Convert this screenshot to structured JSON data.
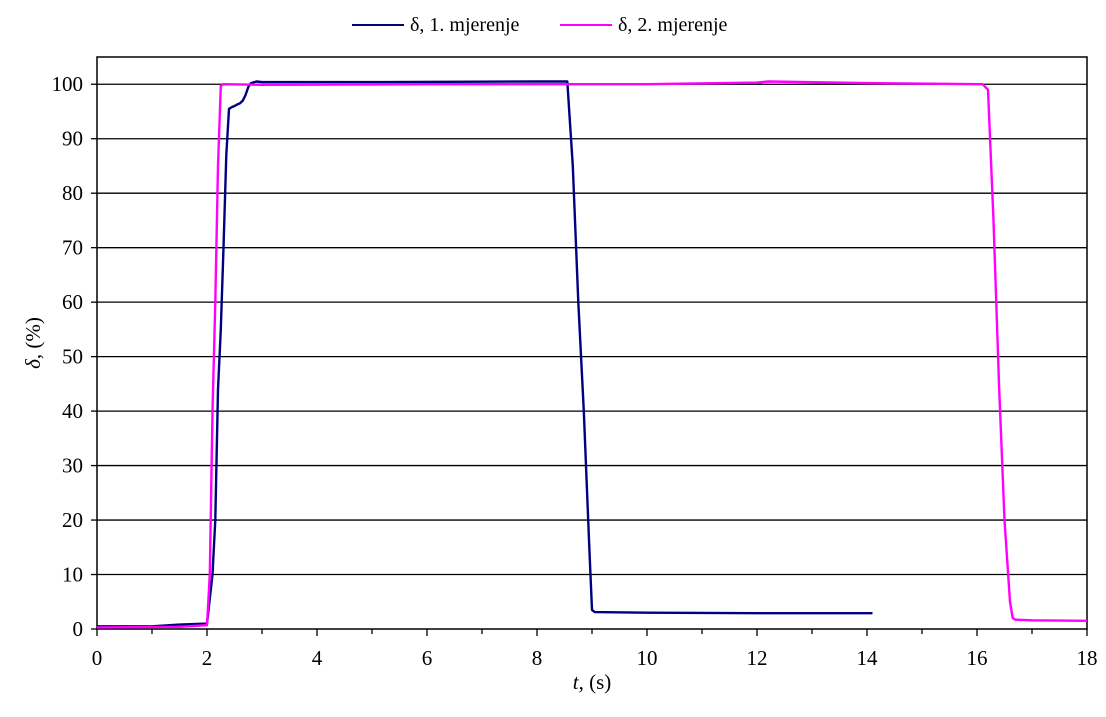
{
  "chart_data": {
    "type": "line",
    "xlabel_var": "t",
    "xlabel_unit": ", (s)",
    "ylabel_var": "δ",
    "ylabel_unit": ", (%)",
    "xlim": [
      0,
      18
    ],
    "ylim": [
      0,
      105
    ],
    "xticks": [
      "0",
      "2",
      "4",
      "6",
      "8",
      "10",
      "12",
      "14",
      "16",
      "18"
    ],
    "yticks": [
      "0",
      "10",
      "20",
      "30",
      "40",
      "50",
      "60",
      "70",
      "80",
      "90",
      "100"
    ],
    "grid": "horizontal",
    "legend_position": "top",
    "series": [
      {
        "name": "δ, 1. mjerenje",
        "color": "#000080",
        "x": [
          0,
          1.0,
          1.5,
          2.0,
          2.1,
          2.15,
          2.2,
          2.25,
          2.3,
          2.35,
          2.4,
          2.45,
          2.5,
          2.55,
          2.6,
          2.65,
          2.7,
          2.75,
          2.8,
          2.9,
          3.0,
          5.0,
          8.0,
          8.55,
          8.65,
          8.75,
          8.85,
          8.95,
          9.0,
          9.05,
          10.0,
          12.0,
          14.1
        ],
        "y": [
          0.5,
          0.5,
          0.8,
          1.0,
          10,
          20,
          44,
          55,
          70,
          87,
          95.5,
          95.8,
          96,
          96.3,
          96.5,
          97,
          98,
          99.5,
          100.2,
          100.5,
          100.4,
          100.4,
          100.5,
          100.5,
          85,
          60,
          40,
          15,
          3.5,
          3.1,
          3.0,
          2.9,
          2.9
        ]
      },
      {
        "name": "δ, 2. mjerenje",
        "color": "#FF00FF",
        "x": [
          0,
          1.5,
          2.0,
          2.05,
          2.1,
          2.15,
          2.2,
          2.25,
          2.3,
          3.0,
          6.0,
          10.0,
          12.0,
          12.2,
          14.0,
          16.1,
          16.2,
          16.3,
          16.4,
          16.5,
          16.6,
          16.65,
          16.7,
          17.0,
          18.0
        ],
        "y": [
          0.3,
          0.4,
          0.7,
          10,
          40,
          60,
          85,
          99.7,
          100,
          99.9,
          100,
          100,
          100.3,
          100.5,
          100.2,
          100,
          99,
          75,
          45,
          20,
          5,
          2,
          1.7,
          1.6,
          1.5
        ]
      }
    ]
  }
}
